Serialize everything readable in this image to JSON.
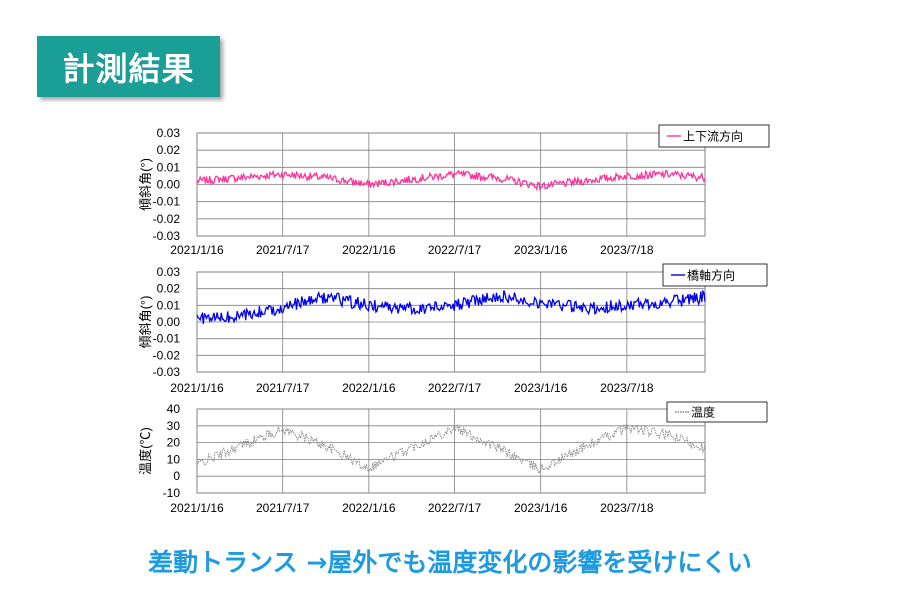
{
  "header": {
    "title": "計測結果"
  },
  "footer": {
    "conclusion": "差動トランス →屋外でも温度変化の影響を受けにくい"
  },
  "chart_data": [
    {
      "type": "line",
      "ylabel": "傾斜角(°)",
      "ylim": [
        -0.03,
        0.03
      ],
      "yticks": [
        "0.03",
        "0.02",
        "0.01",
        "0.00",
        "-0.01",
        "-0.02",
        "-0.03"
      ],
      "xticks": [
        "2021/1/16",
        "2021/7/17",
        "2022/1/16",
        "2022/7/17",
        "2023/1/16",
        "2023/7/18"
      ],
      "grid": true,
      "legend_position": "top-right",
      "series": [
        {
          "name": "上下流方向",
          "color": "#ff3399",
          "style": "solid",
          "x": [
            "2021/1/16",
            "2021/4/16",
            "2021/7/17",
            "2021/10/16",
            "2022/1/16",
            "2022/4/16",
            "2022/7/17",
            "2022/10/16",
            "2023/1/16",
            "2023/4/16",
            "2023/7/18",
            "2023/10/18",
            "2023/12/31"
          ],
          "values": [
            0.002,
            0.004,
            0.006,
            0.004,
            0.0,
            0.003,
            0.006,
            0.004,
            -0.001,
            0.002,
            0.005,
            0.006,
            0.004
          ]
        }
      ]
    },
    {
      "type": "line",
      "ylabel": "傾斜角(°)",
      "ylim": [
        -0.03,
        0.03
      ],
      "yticks": [
        "0.03",
        "0.02",
        "0.01",
        "0.00",
        "-0.01",
        "-0.02",
        "-0.03"
      ],
      "xticks": [
        "2021/1/16",
        "2021/7/17",
        "2022/1/16",
        "2022/7/17",
        "2023/1/16",
        "2023/7/18"
      ],
      "grid": true,
      "legend_position": "top-right",
      "series": [
        {
          "name": "橋軸方向",
          "color": "#0000ee",
          "style": "solid",
          "x": [
            "2021/1/16",
            "2021/4/16",
            "2021/7/17",
            "2021/10/16",
            "2022/1/16",
            "2022/4/16",
            "2022/7/17",
            "2022/10/16",
            "2023/1/16",
            "2023/4/16",
            "2023/7/18",
            "2023/10/18",
            "2023/12/31"
          ],
          "values": [
            0.002,
            0.003,
            0.009,
            0.015,
            0.01,
            0.008,
            0.01,
            0.016,
            0.012,
            0.008,
            0.01,
            0.012,
            0.015
          ]
        }
      ]
    },
    {
      "type": "line",
      "ylabel": "温度(℃)",
      "ylim": [
        -10,
        40
      ],
      "yticks": [
        "40",
        "30",
        "20",
        "10",
        "0",
        "-10"
      ],
      "xticks": [
        "2021/1/16",
        "2021/7/17",
        "2022/1/16",
        "2022/7/17",
        "2023/1/16",
        "2023/7/18"
      ],
      "grid": true,
      "legend_position": "top-right",
      "series": [
        {
          "name": "温度",
          "color": "#888888",
          "style": "dotted",
          "x": [
            "2021/1/16",
            "2021/4/16",
            "2021/7/17",
            "2021/10/16",
            "2022/1/16",
            "2022/4/16",
            "2022/7/17",
            "2022/10/16",
            "2023/1/16",
            "2023/4/16",
            "2023/7/18",
            "2023/10/18",
            "2023/12/31"
          ],
          "values": [
            7,
            18,
            28,
            18,
            5,
            17,
            29,
            17,
            4,
            17,
            29,
            24,
            17
          ]
        }
      ]
    }
  ]
}
